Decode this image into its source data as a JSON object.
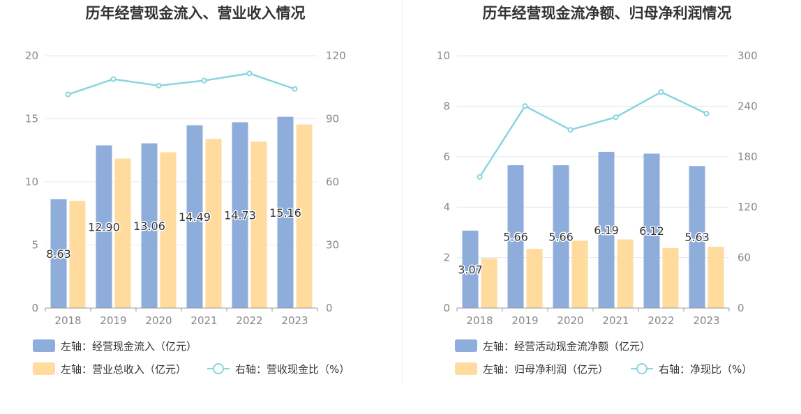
{
  "charts": [
    {
      "type": "bar",
      "title": "历年经营现金流入、营业收入情况",
      "categories": [
        "2018",
        "2019",
        "2020",
        "2021",
        "2022",
        "2023"
      ],
      "left_axis": {
        "min": 0,
        "max": 20,
        "ticks": [
          0,
          5,
          10,
          15,
          20
        ]
      },
      "right_axis": {
        "min": 0,
        "max": 120,
        "ticks": [
          0,
          30,
          60,
          90,
          120
        ]
      },
      "series": [
        {
          "name": "左轴：经营现金流入（亿元）",
          "kind": "bar",
          "axis": "left",
          "color": "#8EADDB",
          "values": [
            8.63,
            12.9,
            13.06,
            14.49,
            14.73,
            15.16
          ],
          "labels": [
            "8.63",
            "12.90",
            "13.06",
            "14.49",
            "14.73",
            "15.16"
          ]
        },
        {
          "name": "左轴：营业总收入（亿元）",
          "kind": "bar",
          "axis": "left",
          "color": "#FFDB9E",
          "values": [
            8.5,
            11.85,
            12.35,
            13.4,
            13.2,
            14.55
          ]
        },
        {
          "name": "右轴：营收现金比（%）",
          "kind": "line",
          "axis": "right",
          "color": "#88D5DF",
          "values": [
            101.6,
            108.9,
            105.8,
            108.2,
            111.6,
            104.2
          ]
        }
      ]
    },
    {
      "type": "bar",
      "title": "历年经营现金流净额、归母净利润情况",
      "categories": [
        "2018",
        "2019",
        "2020",
        "2021",
        "2022",
        "2023"
      ],
      "left_axis": {
        "min": 0,
        "max": 10,
        "ticks": [
          0,
          2,
          4,
          6,
          8,
          10
        ]
      },
      "right_axis": {
        "min": 0,
        "max": 300,
        "ticks": [
          0,
          60,
          120,
          180,
          240,
          300
        ]
      },
      "series": [
        {
          "name": "左轴：经营活动现金流净额（亿元）",
          "kind": "bar",
          "axis": "left",
          "color": "#8EADDB",
          "values": [
            3.07,
            5.66,
            5.66,
            6.19,
            6.12,
            5.63
          ],
          "labels": [
            "3.07",
            "5.66",
            "5.66",
            "6.19",
            "6.12",
            "5.63"
          ]
        },
        {
          "name": "左轴：归母净利润（亿元）",
          "kind": "bar",
          "axis": "left",
          "color": "#FFDB9E",
          "values": [
            1.97,
            2.35,
            2.67,
            2.72,
            2.38,
            2.43
          ]
        },
        {
          "name": "右轴：净现比（%）",
          "kind": "line",
          "axis": "right",
          "color": "#88D5DF",
          "values": [
            155.9,
            240.2,
            211.9,
            226.9,
            256.9,
            231.2
          ]
        }
      ]
    }
  ]
}
